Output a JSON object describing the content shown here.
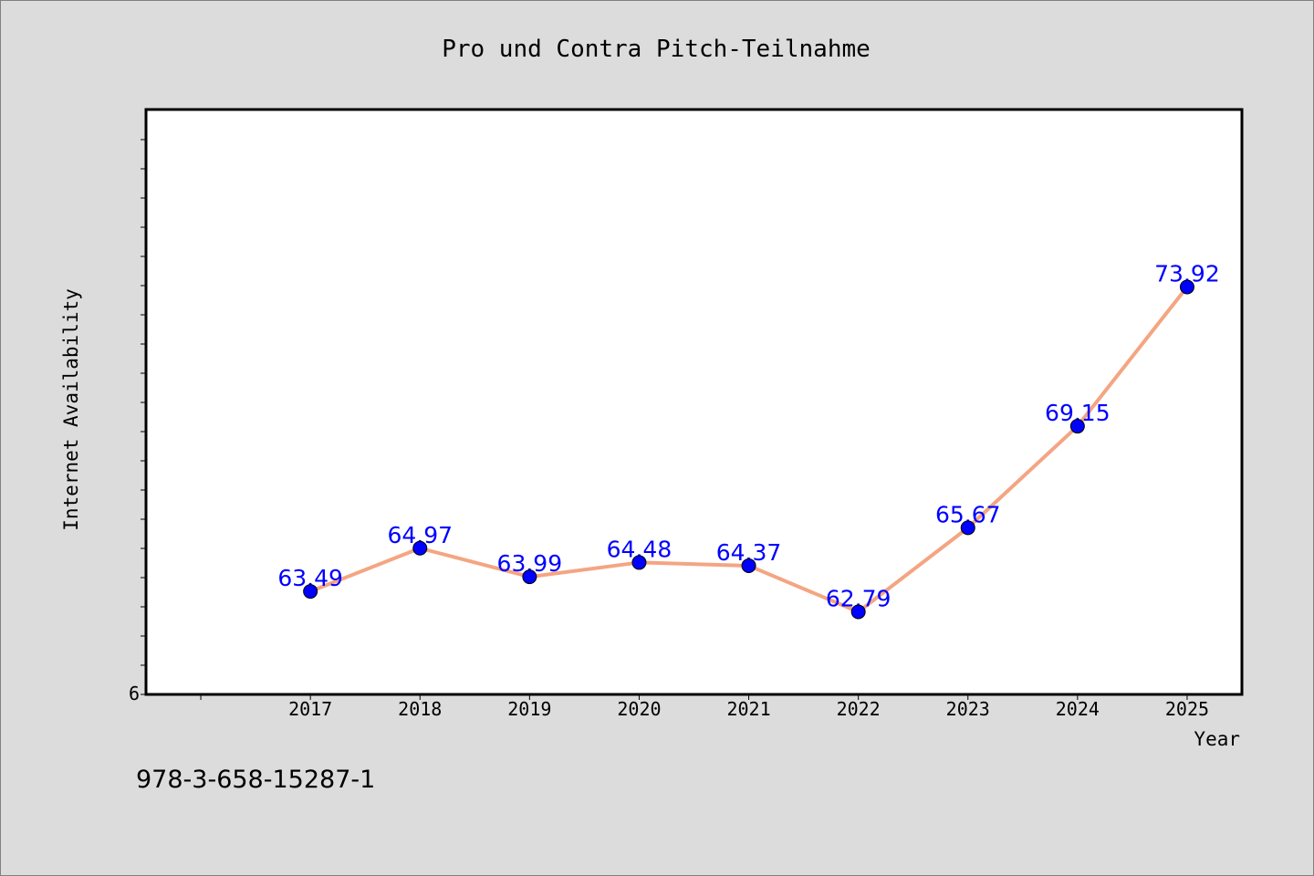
{
  "chart_data": {
    "type": "line",
    "title": "Pro und Contra Pitch-Teilnahme",
    "xlabel": "Year",
    "ylabel": "Internet Availability",
    "categories": [
      "2017",
      "2018",
      "2019",
      "2020",
      "2021",
      "2022",
      "2023",
      "2024",
      "2025"
    ],
    "series": [
      {
        "values": [
          63.49,
          64.97,
          63.99,
          64.48,
          64.37,
          62.79,
          65.67,
          69.15,
          73.92
        ],
        "line_color": "#f4a582",
        "marker_color": "#0000ff"
      }
    ],
    "data_labels": [
      "63.49",
      "64.97",
      "63.99",
      "64.48",
      "64.37",
      "62.79",
      "65.67",
      "69.15",
      "73.92"
    ],
    "y_tick_label": "6",
    "ylim": [
      59.96,
      80.0
    ],
    "x_range": [
      2015.5,
      2025.5
    ],
    "grid": false,
    "legend": "none"
  },
  "footnote": "978-3-658-15287-1"
}
